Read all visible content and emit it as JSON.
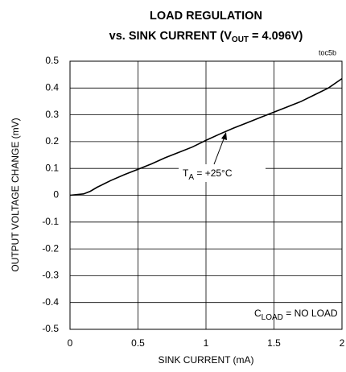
{
  "chart_data": {
    "type": "line",
    "title": "LOAD REGULATION",
    "subtitle": {
      "text": "vs. SINK CURRENT (V",
      "sub": "OUT",
      "rest": " = 4.096V)"
    },
    "figure_code": "toc5b",
    "x_label": "SINK CURRENT (mA)",
    "y_label": "OUTPUT VOLTAGE CHANGE (mV)",
    "annotations": [
      {
        "text": "T",
        "sub": "A",
        "rest": " = +25°C"
      },
      {
        "text": "C",
        "sub": "LOAD",
        "rest": " = NO LOAD"
      }
    ],
    "x": [
      0,
      0.1,
      0.15,
      0.2,
      0.3,
      0.4,
      0.5,
      0.6,
      0.7,
      0.8,
      0.9,
      1.0,
      1.1,
      1.2,
      1.3,
      1.4,
      1.5,
      1.6,
      1.7,
      1.8,
      1.9,
      2.0
    ],
    "values": [
      0,
      0.005,
      0.015,
      0.03,
      0.055,
      0.077,
      0.097,
      0.117,
      0.14,
      0.16,
      0.18,
      0.205,
      0.228,
      0.25,
      0.27,
      0.29,
      0.31,
      0.33,
      0.35,
      0.375,
      0.4,
      0.435
    ],
    "color": "#000000",
    "xlim": [
      0,
      2
    ],
    "xticks": [
      0,
      0.5,
      1,
      1.5,
      2
    ],
    "ylim": [
      -0.5,
      0.5
    ],
    "yticks": [
      0.5,
      0.4,
      0.3,
      0.2,
      0.1,
      0,
      -0.1,
      -0.2,
      -0.3,
      -0.4,
      -0.5
    ],
    "grid": true
  }
}
